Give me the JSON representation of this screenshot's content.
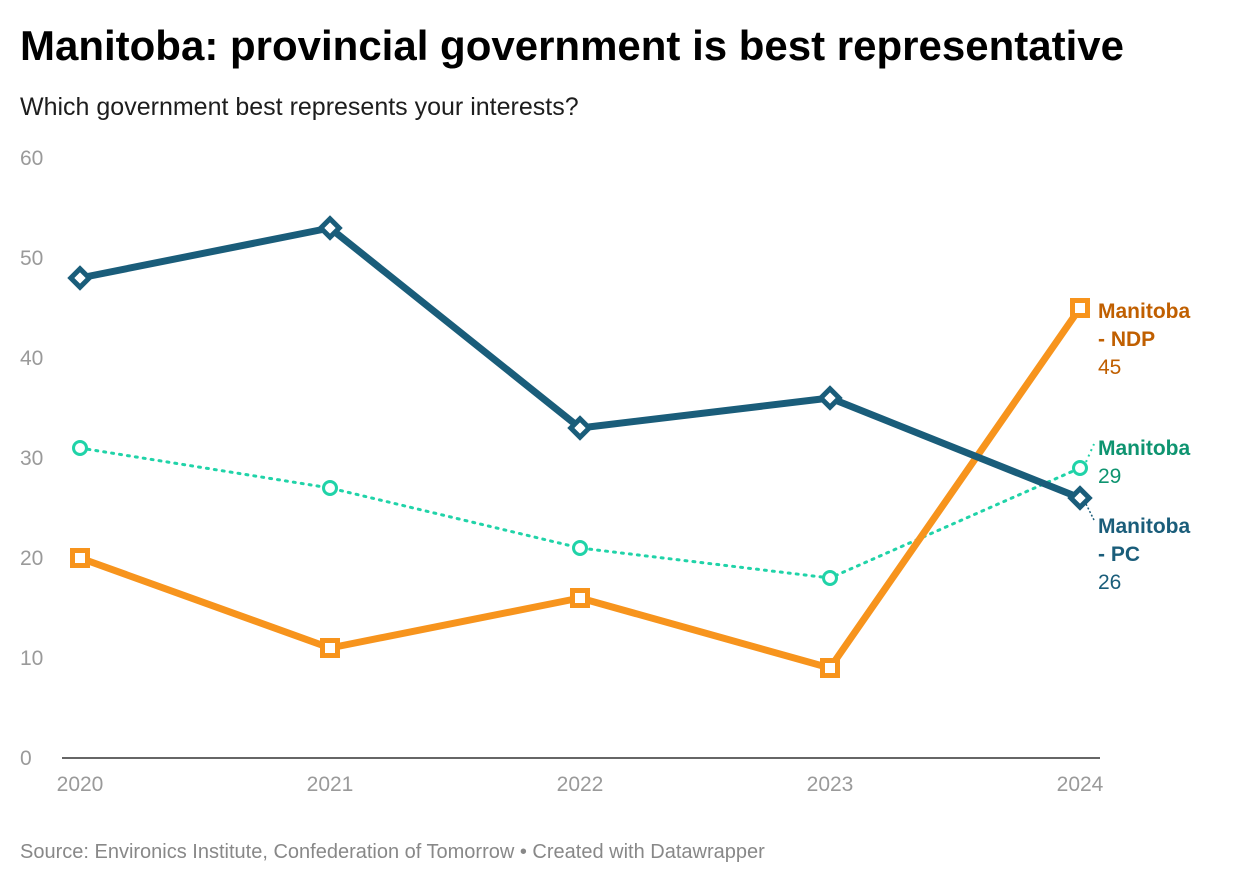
{
  "header": {
    "title": "Manitoba: provincial government is best representative",
    "subtitle": "Which government best represents your interests?"
  },
  "footer": {
    "source": "Source: Environics Institute, Confederation of Tomorrow • Created with Datawrapper"
  },
  "chart_data": {
    "type": "line",
    "title": "Manitoba: provincial government is best representative",
    "subtitle": "Which government best represents your interests?",
    "xlabel": "",
    "ylabel": "",
    "x": [
      "2020",
      "2021",
      "2022",
      "2023",
      "2024"
    ],
    "ylim": [
      0,
      60
    ],
    "yticks": [
      0,
      10,
      20,
      30,
      40,
      50,
      60
    ],
    "grid": false,
    "legend": "direct labels at line ends, right",
    "series": [
      {
        "key": "pc",
        "name_lines": [
          "Manitoba",
          "- PC"
        ],
        "values": [
          48,
          53,
          33,
          36,
          26
        ],
        "end_label": "26",
        "color": "#1a5d7a",
        "label_color": "#1a5d7a",
        "marker": "diamond",
        "style": "solid"
      },
      {
        "key": "ndp",
        "name_lines": [
          "Manitoba",
          "- NDP"
        ],
        "values": [
          20,
          11,
          16,
          9,
          45
        ],
        "end_label": "45",
        "color": "#f7941d",
        "label_color": "#c05f00",
        "marker": "square",
        "style": "solid"
      },
      {
        "key": "manitoba",
        "name_lines": [
          "Manitoba"
        ],
        "values": [
          31,
          27,
          21,
          18,
          29
        ],
        "end_label": "29",
        "color": "#20d3a8",
        "label_color": "#0e9470",
        "marker": "circle",
        "style": "dotted"
      }
    ]
  }
}
